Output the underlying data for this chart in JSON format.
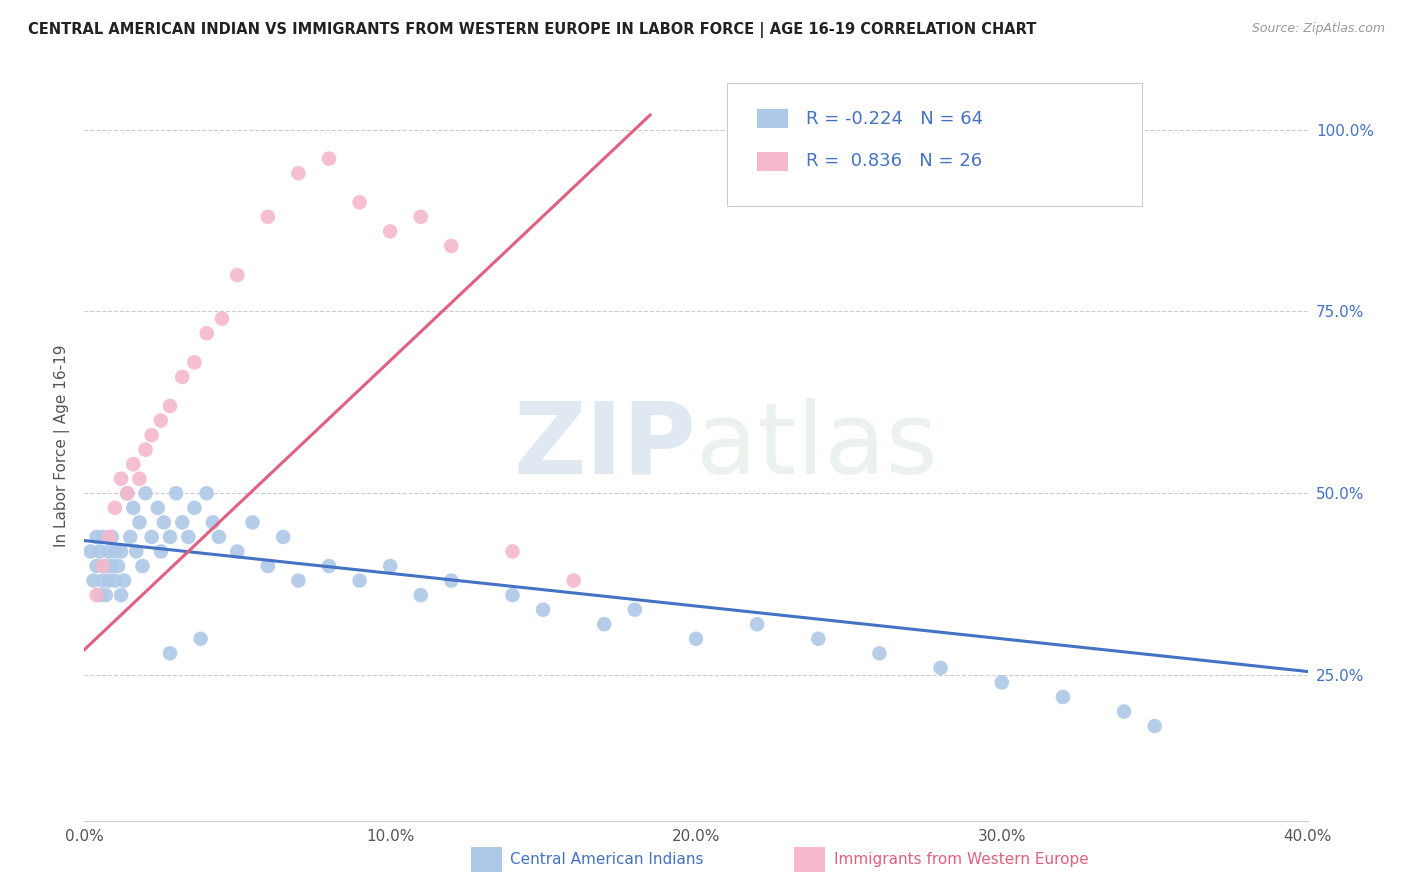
{
  "title": "CENTRAL AMERICAN INDIAN VS IMMIGRANTS FROM WESTERN EUROPE IN LABOR FORCE | AGE 16-19 CORRELATION CHART",
  "source": "Source: ZipAtlas.com",
  "ylabel": "In Labor Force | Age 16-19",
  "xlim": [
    0.0,
    0.4
  ],
  "ylim": [
    0.05,
    1.08
  ],
  "xtick_values": [
    0.0,
    0.1,
    0.2,
    0.3,
    0.4
  ],
  "xtick_labels": [
    "0.0%",
    "10.0%",
    "20.0%",
    "30.0%",
    "40.0%"
  ],
  "ytick_right_values": [
    0.25,
    0.5,
    0.75,
    1.0
  ],
  "ytick_right_labels": [
    "25.0%",
    "50.0%",
    "75.0%",
    "100.0%"
  ],
  "blue_color": "#aec8e8",
  "pink_color": "#f5b8cc",
  "blue_line_color": "#4472c4",
  "pink_line_color": "#e06080",
  "R_blue": -0.224,
  "N_blue": 64,
  "R_pink": 0.836,
  "N_pink": 26,
  "watermark_zip": "ZIP",
  "watermark_atlas": "atlas",
  "legend_label_color": "#4472c4",
  "blue_x": [
    0.002,
    0.003,
    0.004,
    0.004,
    0.005,
    0.005,
    0.006,
    0.006,
    0.007,
    0.007,
    0.008,
    0.008,
    0.009,
    0.009,
    0.01,
    0.01,
    0.011,
    0.012,
    0.012,
    0.013,
    0.014,
    0.015,
    0.016,
    0.017,
    0.018,
    0.019,
    0.02,
    0.022,
    0.024,
    0.025,
    0.026,
    0.028,
    0.03,
    0.032,
    0.034,
    0.036,
    0.04,
    0.042,
    0.044,
    0.05,
    0.055,
    0.06,
    0.065,
    0.07,
    0.08,
    0.09,
    0.1,
    0.11,
    0.12,
    0.14,
    0.15,
    0.17,
    0.18,
    0.2,
    0.22,
    0.24,
    0.26,
    0.28,
    0.3,
    0.32,
    0.34,
    0.35,
    0.038,
    0.028
  ],
  "blue_y": [
    0.42,
    0.38,
    0.44,
    0.4,
    0.36,
    0.42,
    0.38,
    0.44,
    0.4,
    0.36,
    0.42,
    0.38,
    0.4,
    0.44,
    0.38,
    0.42,
    0.4,
    0.36,
    0.42,
    0.38,
    0.5,
    0.44,
    0.48,
    0.42,
    0.46,
    0.4,
    0.5,
    0.44,
    0.48,
    0.42,
    0.46,
    0.44,
    0.5,
    0.46,
    0.44,
    0.48,
    0.5,
    0.46,
    0.44,
    0.42,
    0.46,
    0.4,
    0.44,
    0.38,
    0.4,
    0.38,
    0.4,
    0.36,
    0.38,
    0.36,
    0.34,
    0.32,
    0.34,
    0.3,
    0.32,
    0.3,
    0.28,
    0.26,
    0.24,
    0.22,
    0.2,
    0.18,
    0.3,
    0.28
  ],
  "pink_x": [
    0.004,
    0.006,
    0.008,
    0.01,
    0.012,
    0.014,
    0.016,
    0.018,
    0.02,
    0.022,
    0.025,
    0.028,
    0.032,
    0.036,
    0.04,
    0.045,
    0.05,
    0.06,
    0.07,
    0.08,
    0.09,
    0.1,
    0.11,
    0.12,
    0.14,
    0.16
  ],
  "pink_y": [
    0.36,
    0.4,
    0.44,
    0.48,
    0.52,
    0.5,
    0.54,
    0.52,
    0.56,
    0.58,
    0.6,
    0.62,
    0.66,
    0.68,
    0.72,
    0.74,
    0.8,
    0.88,
    0.94,
    0.96,
    0.9,
    0.86,
    0.88,
    0.84,
    0.42,
    0.38
  ],
  "blue_trend_x": [
    0.0,
    0.4
  ],
  "blue_trend_y": [
    0.435,
    0.255
  ],
  "pink_trend_x": [
    0.0,
    0.185
  ],
  "pink_trend_y": [
    0.285,
    1.02
  ]
}
